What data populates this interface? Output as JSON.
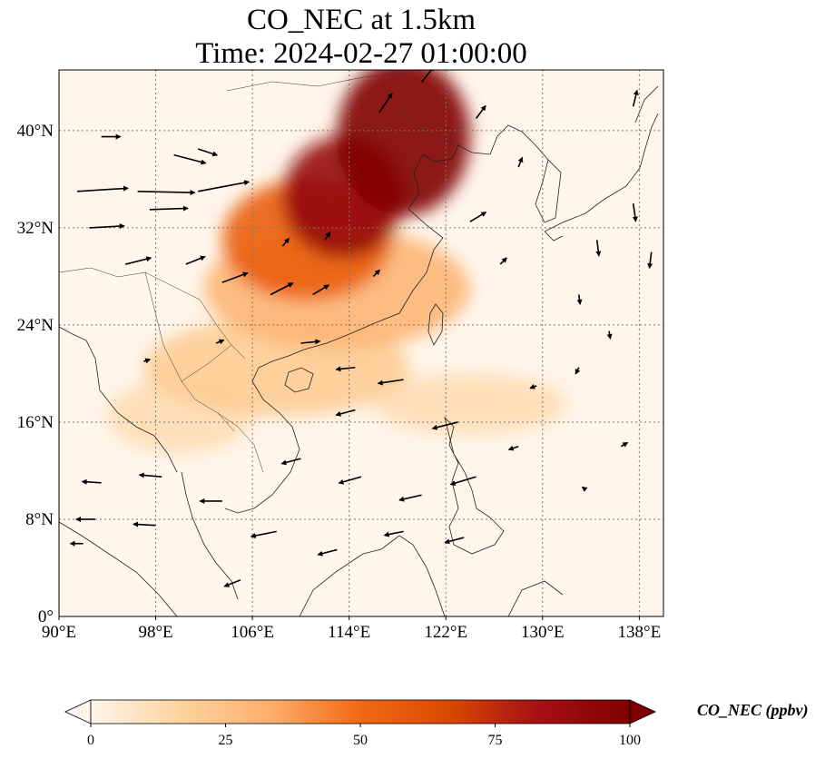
{
  "title": {
    "line1": "CO_NEC at 1.5km",
    "line2": "Time: 2024-02-27 01:00:00"
  },
  "map": {
    "extent": {
      "lon": [
        90,
        140
      ],
      "lat": [
        0,
        45
      ]
    },
    "lon_ticks": [
      {
        "value": 90,
        "label": "90°E"
      },
      {
        "value": 98,
        "label": "98°E"
      },
      {
        "value": 106,
        "label": "106°E"
      },
      {
        "value": 114,
        "label": "114°E"
      },
      {
        "value": 122,
        "label": "122°E"
      },
      {
        "value": 130,
        "label": "130°E"
      },
      {
        "value": 138,
        "label": "138°E"
      }
    ],
    "lat_ticks": [
      {
        "value": 0,
        "label": "0°"
      },
      {
        "value": 8,
        "label": "8°N"
      },
      {
        "value": 16,
        "label": "16°N"
      },
      {
        "value": 24,
        "label": "24°N"
      },
      {
        "value": 32,
        "label": "32°N"
      },
      {
        "value": 40,
        "label": "40°N"
      }
    ],
    "gridlines": true
  },
  "colorbar": {
    "label": "CO_NEC (ppbv)",
    "min": 0,
    "max": 100,
    "ticks": [
      "0",
      "25",
      "50",
      "75",
      "100"
    ],
    "colors": [
      "#fff5eb",
      "#fdd49e",
      "#fdae6b",
      "#f16913",
      "#d94801",
      "#a50f15",
      "#7f0000"
    ]
  },
  "plumes": [
    {
      "lon": 118.5,
      "lat": 39.5,
      "rx": 5.5,
      "ry": 6.5,
      "level": 100
    },
    {
      "lon": 113.5,
      "lat": 34.5,
      "rx": 5.0,
      "ry": 5.0,
      "level": 90
    },
    {
      "lon": 110.5,
      "lat": 31.0,
      "rx": 7.0,
      "ry": 5.0,
      "level": 55
    },
    {
      "lon": 113.0,
      "lat": 27.0,
      "rx": 11.0,
      "ry": 5.0,
      "level": 30
    },
    {
      "lon": 108.0,
      "lat": 20.5,
      "rx": 11.0,
      "ry": 4.0,
      "level": 20
    },
    {
      "lon": 100.0,
      "lat": 16.5,
      "rx": 6.0,
      "ry": 3.0,
      "level": 12
    },
    {
      "lon": 124.0,
      "lat": 17.5,
      "rx": 8.0,
      "ry": 2.5,
      "level": 12
    }
  ],
  "wind_vectors": [
    {
      "lon": 91.5,
      "lat": 35.0,
      "u": 8,
      "v": 0.5
    },
    {
      "lon": 96.5,
      "lat": 35.0,
      "u": 9,
      "v": -0.2
    },
    {
      "lon": 101.5,
      "lat": 35.0,
      "u": 8,
      "v": 1.5
    },
    {
      "lon": 92.5,
      "lat": 32.0,
      "u": 5.5,
      "v": 0.3
    },
    {
      "lon": 97.5,
      "lat": 33.5,
      "u": 6,
      "v": 0.2
    },
    {
      "lon": 95.5,
      "lat": 29.0,
      "u": 4,
      "v": 1
    },
    {
      "lon": 100.5,
      "lat": 29.0,
      "u": 3,
      "v": 1.2
    },
    {
      "lon": 103.5,
      "lat": 27.5,
      "u": 4,
      "v": 1.5
    },
    {
      "lon": 107.5,
      "lat": 26.5,
      "u": 3.5,
      "v": 1.8
    },
    {
      "lon": 111.0,
      "lat": 26.5,
      "u": 2.5,
      "v": 1.5
    },
    {
      "lon": 99.5,
      "lat": 38.0,
      "u": 5,
      "v": -1.3
    },
    {
      "lon": 101.5,
      "lat": 38.5,
      "u": 3,
      "v": -1
    },
    {
      "lon": 93.5,
      "lat": 39.5,
      "u": 3,
      "v": 0
    },
    {
      "lon": 110.0,
      "lat": 22.5,
      "u": 3,
      "v": 0.3
    },
    {
      "lon": 114.5,
      "lat": 20.5,
      "u": -3,
      "v": -0.3
    },
    {
      "lon": 118.5,
      "lat": 19.5,
      "u": -4,
      "v": -0.6
    },
    {
      "lon": 114.5,
      "lat": 17.0,
      "u": -3,
      "v": -0.8
    },
    {
      "lon": 123.0,
      "lat": 16.0,
      "u": -4,
      "v": -1
    },
    {
      "lon": 110.0,
      "lat": 13.0,
      "u": -3,
      "v": -0.8
    },
    {
      "lon": 115.0,
      "lat": 11.5,
      "u": -3.5,
      "v": -1
    },
    {
      "lon": 120.0,
      "lat": 10.0,
      "u": -3.5,
      "v": -0.8
    },
    {
      "lon": 124.5,
      "lat": 11.5,
      "u": -4,
      "v": -1.2
    },
    {
      "lon": 93.5,
      "lat": 11.0,
      "u": -3,
      "v": 0.2
    },
    {
      "lon": 98.5,
      "lat": 11.5,
      "u": -3.5,
      "v": 0.3
    },
    {
      "lon": 103.5,
      "lat": 9.5,
      "u": -3.5,
      "v": 0
    },
    {
      "lon": 93.0,
      "lat": 8.0,
      "u": -3,
      "v": 0
    },
    {
      "lon": 98.0,
      "lat": 7.5,
      "u": -3.5,
      "v": 0.2
    },
    {
      "lon": 108.0,
      "lat": 7.0,
      "u": -4,
      "v": -0.8
    },
    {
      "lon": 113.0,
      "lat": 5.5,
      "u": -3,
      "v": -0.8
    },
    {
      "lon": 118.5,
      "lat": 7.0,
      "u": -3,
      "v": -0.6
    },
    {
      "lon": 123.5,
      "lat": 6.5,
      "u": -3,
      "v": -0.8
    },
    {
      "lon": 105.0,
      "lat": 3.0,
      "u": -2.5,
      "v": -1
    },
    {
      "lon": 92.0,
      "lat": 6.0,
      "u": -2,
      "v": 0
    },
    {
      "lon": 116.5,
      "lat": 41.5,
      "u": 2,
      "v": 3
    },
    {
      "lon": 120.0,
      "lat": 44.0,
      "u": 2,
      "v": 2.5
    },
    {
      "lon": 124.5,
      "lat": 41.0,
      "u": 1.5,
      "v": 2
    },
    {
      "lon": 128.0,
      "lat": 37.0,
      "u": 0.6,
      "v": 1.5
    },
    {
      "lon": 124.0,
      "lat": 32.5,
      "u": 2.5,
      "v": 1.5
    },
    {
      "lon": 126.5,
      "lat": 29.0,
      "u": 1,
      "v": 1
    },
    {
      "lon": 134.5,
      "lat": 31.0,
      "u": 0.3,
      "v": -2.5
    },
    {
      "lon": 137.5,
      "lat": 34.0,
      "u": 0.4,
      "v": -2.8
    },
    {
      "lon": 139.0,
      "lat": 30.0,
      "u": -0.3,
      "v": -2.5
    },
    {
      "lon": 137.5,
      "lat": 42.0,
      "u": 0.6,
      "v": 2.5
    },
    {
      "lon": 133.0,
      "lat": 26.5,
      "u": 0.2,
      "v": -1.5
    },
    {
      "lon": 135.5,
      "lat": 23.5,
      "u": 0.2,
      "v": -1.2
    },
    {
      "lon": 136.5,
      "lat": 14.0,
      "u": 1,
      "v": 0.6
    },
    {
      "lon": 108.5,
      "lat": 30.5,
      "u": 1,
      "v": 1.2
    },
    {
      "lon": 112.0,
      "lat": 31.0,
      "u": 0.8,
      "v": 1.2
    },
    {
      "lon": 116.0,
      "lat": 28.0,
      "u": 1,
      "v": 1
    },
    {
      "lon": 103.0,
      "lat": 22.5,
      "u": 1.2,
      "v": 0.5
    },
    {
      "lon": 97.0,
      "lat": 21.0,
      "u": 1,
      "v": 0.3
    },
    {
      "lon": 129.5,
      "lat": 19.0,
      "u": -1,
      "v": -0.4
    },
    {
      "lon": 133.0,
      "lat": 20.5,
      "u": -0.5,
      "v": -1
    },
    {
      "lon": 128.0,
      "lat": 14.0,
      "u": -1.5,
      "v": -0.5
    },
    {
      "lon": 133.5,
      "lat": 10.5,
      "u": -0.4,
      "v": 0.3
    }
  ]
}
